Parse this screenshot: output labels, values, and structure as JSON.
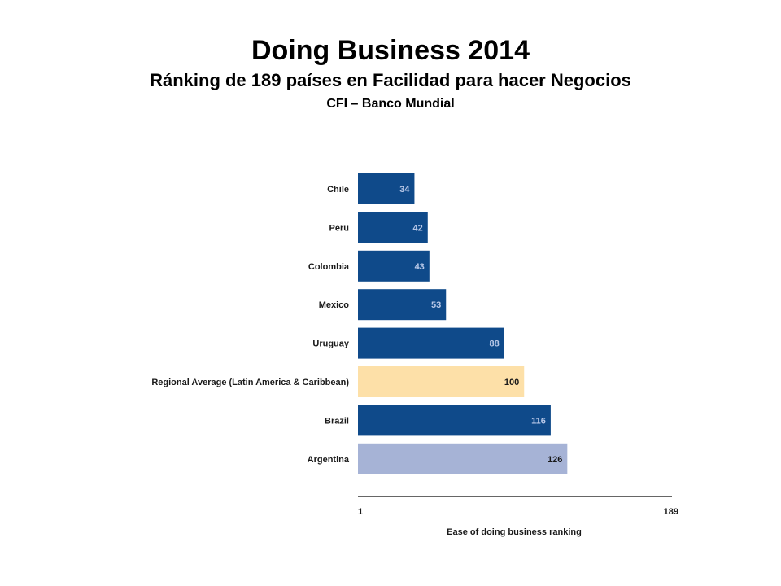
{
  "header": {
    "title": "Doing Business 2014",
    "subtitle": "Ránking de 189 países en Facilidad para hacer Negocios",
    "source": "CFI – Banco Mundial"
  },
  "colors": {
    "default_bar": "#0f4a8a",
    "regional_average_bar": "#fde0a8",
    "argentina_bar": "#a6b3d6",
    "light_value_text": "#b8c8e8",
    "dark_value_text": "#1a1a1a",
    "axis_line": "#333333"
  },
  "chart_data": {
    "type": "bar",
    "orientation": "horizontal",
    "categories": [
      "Chile",
      "Peru",
      "Colombia",
      "Mexico",
      "Uruguay",
      "Regional Average (Latin America & Caribbean)",
      "Brazil",
      "Argentina"
    ],
    "values": [
      34,
      42,
      43,
      53,
      88,
      100,
      116,
      126
    ],
    "data_labels": [
      "34",
      "42",
      "43",
      "53",
      "88",
      "100",
      "116",
      "126"
    ],
    "bar_colors": [
      "#0f4a8a",
      "#0f4a8a",
      "#0f4a8a",
      "#0f4a8a",
      "#0f4a8a",
      "#fde0a8",
      "#0f4a8a",
      "#a6b3d6"
    ],
    "xlabel": "Ease of doing business ranking",
    "xlim": [
      1,
      189
    ],
    "xticks": [
      "1",
      "189"
    ],
    "grid": false,
    "legend": "none"
  }
}
